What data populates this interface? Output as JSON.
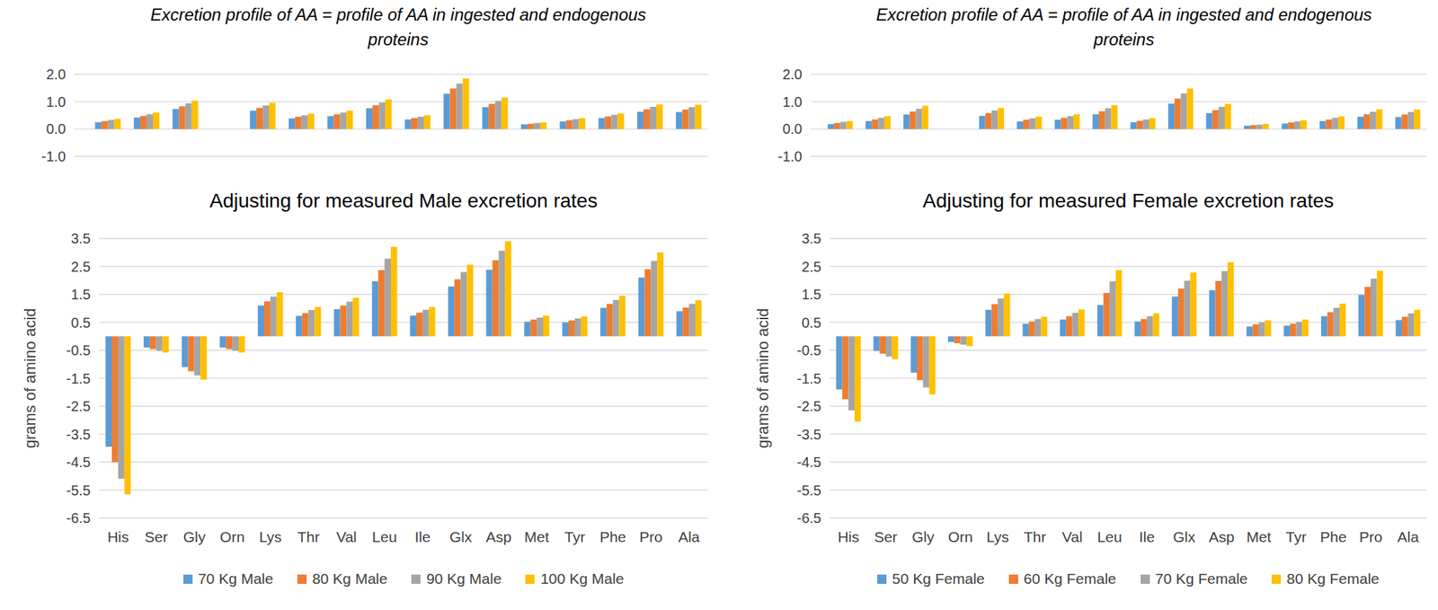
{
  "chart_data": [
    {
      "type": "bar",
      "title": "Excretion profile of AA = profile of AA in ingested and endogenous proteins",
      "categories": [
        null,
        null,
        null,
        null,
        null,
        null,
        null,
        null,
        null,
        null,
        null,
        null,
        null,
        null,
        null,
        null
      ],
      "series": [
        {
          "color": "#5b9bd5",
          "values": [
            0.25,
            0.42,
            0.73,
            0,
            0.67,
            0.39,
            0.47,
            0.76,
            0.35,
            1.29,
            0.8,
            0.17,
            0.28,
            0.4,
            0.63,
            0.62
          ]
        },
        {
          "color": "#ed7d31",
          "values": [
            0.29,
            0.48,
            0.83,
            0,
            0.77,
            0.45,
            0.54,
            0.87,
            0.4,
            1.48,
            0.92,
            0.19,
            0.32,
            0.46,
            0.72,
            0.71
          ]
        },
        {
          "color": "#a5a5a5",
          "values": [
            0.33,
            0.54,
            0.94,
            0,
            0.86,
            0.5,
            0.6,
            0.97,
            0.45,
            1.66,
            1.03,
            0.22,
            0.36,
            0.52,
            0.81,
            0.8
          ]
        },
        {
          "color": "#ffc000",
          "values": [
            0.37,
            0.6,
            1.04,
            0,
            0.96,
            0.56,
            0.67,
            1.08,
            0.5,
            1.85,
            1.15,
            0.24,
            0.4,
            0.57,
            0.9,
            0.89
          ]
        }
      ],
      "ylim": [
        -1,
        2
      ],
      "yticks": [
        {
          "value": -1,
          "label": "-1.0"
        },
        {
          "value": 0,
          "label": "0.0"
        },
        {
          "value": 1,
          "label": "1.0"
        },
        {
          "value": 2,
          "label": "2.0"
        }
      ],
      "grid": true,
      "tick_labels": "y"
    },
    {
      "type": "bar",
      "title": "Adjusting for measured Male excretion rates",
      "y_label": "grams of amino acid",
      "categories": [
        "His",
        "Ser",
        "Gly",
        "Orn",
        "Lys",
        "Thr",
        "Val",
        "Leu",
        "Ile",
        "Glx",
        "Asp",
        "Met",
        "Tyr",
        "Phe",
        "Pro",
        "Ala"
      ],
      "series": [
        {
          "name": "70 Kg Male",
          "color": "#5b9bd5",
          "values": [
            -3.95,
            -0.4,
            -1.1,
            -0.4,
            1.1,
            0.73,
            0.97,
            1.97,
            0.74,
            1.78,
            2.38,
            0.52,
            0.5,
            1.02,
            2.1,
            0.9
          ]
        },
        {
          "name": "80 Kg Male",
          "color": "#ed7d31",
          "values": [
            -4.5,
            -0.46,
            -1.25,
            -0.46,
            1.25,
            0.83,
            1.1,
            2.37,
            0.85,
            2.04,
            2.72,
            0.6,
            0.57,
            1.16,
            2.4,
            1.03
          ]
        },
        {
          "name": "90 Kg Male",
          "color": "#a5a5a5",
          "values": [
            -5.1,
            -0.52,
            -1.4,
            -0.52,
            1.42,
            0.94,
            1.24,
            2.78,
            0.95,
            2.3,
            3.06,
            0.67,
            0.64,
            1.3,
            2.7,
            1.16
          ]
        },
        {
          "name": "100 Kg Male",
          "color": "#ffc000",
          "values": [
            -5.65,
            -0.58,
            -1.55,
            -0.58,
            1.58,
            1.05,
            1.38,
            3.2,
            1.05,
            2.56,
            3.4,
            0.74,
            0.71,
            1.45,
            3.0,
            1.29
          ]
        }
      ],
      "ylim": [
        -6.5,
        3.5
      ],
      "yticks": [
        -6.5,
        -5.5,
        -4.5,
        -3.5,
        -2.5,
        -1.5,
        -0.5,
        0.5,
        1.5,
        2.5,
        3.5
      ],
      "grid": true,
      "legend": "bottom"
    },
    {
      "type": "bar",
      "title": "Excretion profile of AA = profile of AA in ingested and endogenous proteins",
      "categories": [
        null,
        null,
        null,
        null,
        null,
        null,
        null,
        null,
        null,
        null,
        null,
        null,
        null,
        null,
        null,
        null
      ],
      "series": [
        {
          "color": "#5b9bd5",
          "values": [
            0.18,
            0.29,
            0.53,
            0,
            0.48,
            0.28,
            0.34,
            0.54,
            0.25,
            0.93,
            0.58,
            0.12,
            0.2,
            0.29,
            0.45,
            0.44
          ]
        },
        {
          "color": "#ed7d31",
          "values": [
            0.22,
            0.35,
            0.64,
            0,
            0.58,
            0.34,
            0.41,
            0.65,
            0.3,
            1.11,
            0.69,
            0.14,
            0.24,
            0.35,
            0.54,
            0.53
          ]
        },
        {
          "color": "#a5a5a5",
          "values": [
            0.26,
            0.41,
            0.74,
            0,
            0.68,
            0.39,
            0.47,
            0.76,
            0.35,
            1.3,
            0.81,
            0.16,
            0.28,
            0.41,
            0.63,
            0.62
          ]
        },
        {
          "color": "#ffc000",
          "values": [
            0.29,
            0.47,
            0.85,
            0,
            0.77,
            0.45,
            0.54,
            0.87,
            0.4,
            1.48,
            0.92,
            0.19,
            0.32,
            0.46,
            0.72,
            0.71
          ]
        }
      ],
      "ylim": [
        -1,
        2
      ],
      "yticks": [
        {
          "value": -1,
          "label": "-1.0"
        },
        {
          "value": 0,
          "label": "0.0"
        },
        {
          "value": 1,
          "label": "1.0"
        },
        {
          "value": 2,
          "label": "2.0"
        }
      ],
      "grid": true,
      "tick_labels": "y"
    },
    {
      "type": "bar",
      "title": "Adjusting for measured Female excretion rates",
      "y_label": "grams of amino acid",
      "categories": [
        "His",
        "Ser",
        "Gly",
        "Orn",
        "Lys",
        "Thr",
        "Val",
        "Leu",
        "Ile",
        "Glx",
        "Asp",
        "Met",
        "Tyr",
        "Phe",
        "Pro",
        "Ala"
      ],
      "series": [
        {
          "name": "50 Kg Female",
          "color": "#5b9bd5",
          "values": [
            -1.9,
            -0.52,
            -1.3,
            -0.2,
            0.95,
            0.45,
            0.6,
            1.12,
            0.53,
            1.42,
            1.65,
            0.35,
            0.38,
            0.72,
            1.48,
            0.58
          ]
        },
        {
          "name": "60 Kg Female",
          "color": "#ed7d31",
          "values": [
            -2.25,
            -0.62,
            -1.57,
            -0.25,
            1.15,
            0.53,
            0.72,
            1.55,
            0.62,
            1.71,
            1.98,
            0.43,
            0.45,
            0.86,
            1.77,
            0.7
          ]
        },
        {
          "name": "70 Kg Female",
          "color": "#a5a5a5",
          "values": [
            -2.65,
            -0.72,
            -1.83,
            -0.3,
            1.35,
            0.62,
            0.84,
            1.97,
            0.72,
            1.99,
            2.33,
            0.5,
            0.52,
            1.02,
            2.06,
            0.82
          ]
        },
        {
          "name": "80 Kg Female",
          "color": "#ffc000",
          "values": [
            -3.05,
            -0.82,
            -2.08,
            -0.35,
            1.53,
            0.7,
            0.96,
            2.37,
            0.82,
            2.28,
            2.65,
            0.57,
            0.6,
            1.17,
            2.35,
            0.95
          ]
        }
      ],
      "ylim": [
        -6.5,
        3.5
      ],
      "yticks": [
        -6.5,
        -5.5,
        -4.5,
        -3.5,
        -2.5,
        -1.5,
        -0.5,
        0.5,
        1.5,
        2.5,
        3.5
      ],
      "grid": true,
      "legend": "bottom"
    }
  ]
}
